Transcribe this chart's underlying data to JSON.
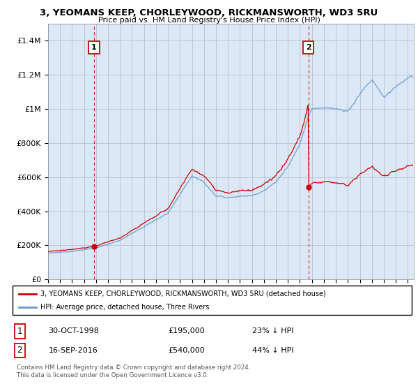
{
  "title": "3, YEOMANS KEEP, CHORLEYWOOD, RICKMANSWORTH, WD3 5RU",
  "subtitle": "Price paid vs. HM Land Registry's House Price Index (HPI)",
  "bg_color": "#ffffff",
  "plot_bg_color": "#dce8f5",
  "grid_color": "#aabbcc",
  "hpi_color": "#6699cc",
  "price_color": "#cc0000",
  "purchase1_x": 1998.83,
  "purchase1_y": 195000,
  "purchase2_x": 2016.71,
  "purchase2_y": 540000,
  "xmin": 1995,
  "xmax": 2025.5,
  "ymin": 0,
  "ymax": 1500000,
  "yticks": [
    0,
    200000,
    400000,
    600000,
    800000,
    1000000,
    1200000,
    1400000
  ],
  "ytick_labels": [
    "£0",
    "£200K",
    "£400K",
    "£600K",
    "£800K",
    "£1M",
    "£1.2M",
    "£1.4M"
  ],
  "legend_line1": "3, YEOMANS KEEP, CHORLEYWOOD, RICKMANSWORTH, WD3 5RU (detached house)",
  "legend_line2": "HPI: Average price, detached house, Three Rivers",
  "footnote": "Contains HM Land Registry data © Crown copyright and database right 2024.\nThis data is licensed under the Open Government Licence v3.0.",
  "table_row1_num": "1",
  "table_row1_date": "30-OCT-1998",
  "table_row1_price": "£195,000",
  "table_row1_hpi": "23% ↓ HPI",
  "table_row2_num": "2",
  "table_row2_date": "16-SEP-2016",
  "table_row2_price": "£540,000",
  "table_row2_hpi": "44% ↓ HPI",
  "hpi_key_years": [
    1995,
    1997,
    1999,
    2001,
    2003,
    2005,
    2007,
    2008,
    2009,
    2010,
    2011,
    2012,
    2013,
    2014,
    2015,
    2016,
    2016.71,
    2017,
    2018,
    2019,
    2020,
    2021,
    2022,
    2023,
    2024,
    2025
  ],
  "hpi_key_vals": [
    155000,
    165000,
    185000,
    230000,
    310000,
    390000,
    610000,
    570000,
    490000,
    480000,
    490000,
    490000,
    520000,
    570000,
    660000,
    790000,
    955000,
    1000000,
    1010000,
    1000000,
    980000,
    1090000,
    1170000,
    1070000,
    1130000,
    1180000
  ]
}
